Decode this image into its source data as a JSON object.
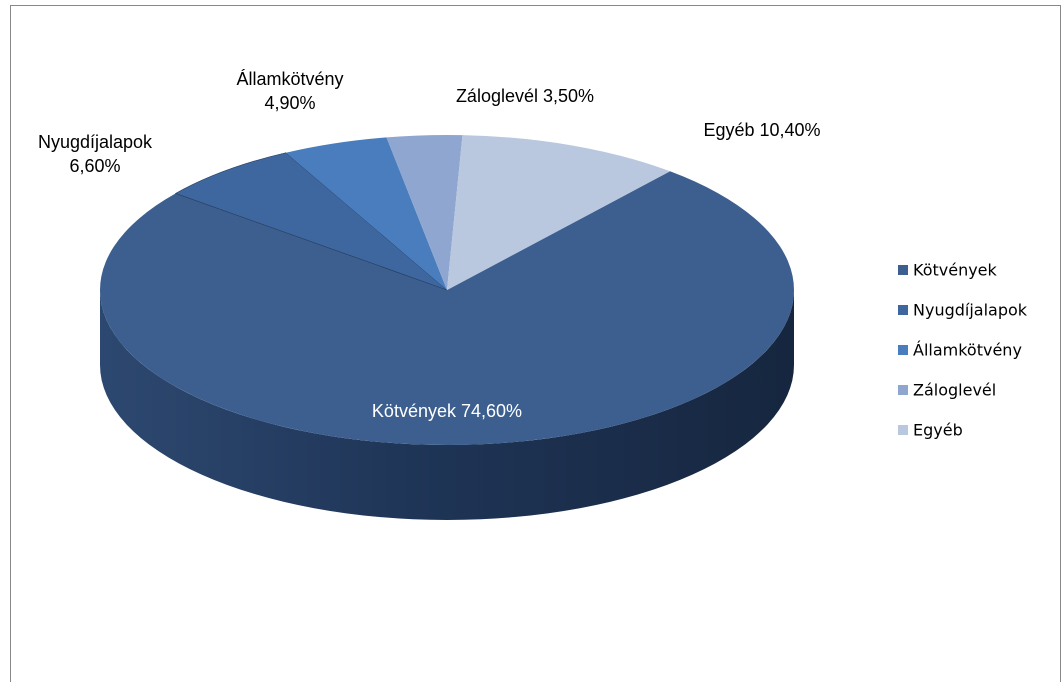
{
  "chart_data": {
    "type": "pie",
    "categories": [
      "Kötvények",
      "Nyugdíjalapok",
      "Államkötvény",
      "Záloglevél",
      "Egyéb"
    ],
    "values": [
      74.6,
      6.6,
      4.9,
      3.5,
      10.4
    ],
    "value_labels": [
      "74,60%",
      "6,60%",
      "4,90%",
      "3,50%",
      "10,40%"
    ],
    "colors": [
      "#3c5f8f",
      "#3e67a0",
      "#4a7dbd",
      "#8fa7d0",
      "#b9c7df"
    ],
    "legend": "right"
  }
}
